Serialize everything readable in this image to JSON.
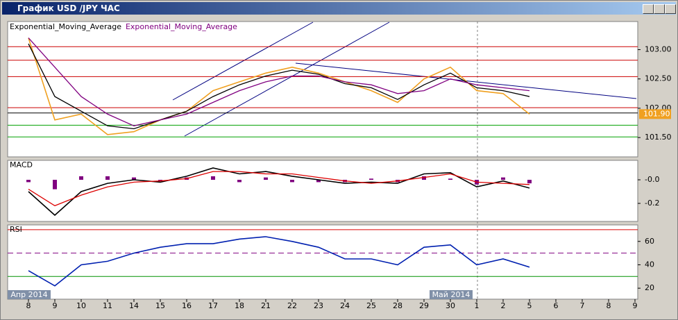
{
  "window": {
    "title": "График USD /JPY ЧАС"
  },
  "chart_data": [
    {
      "type": "line",
      "legend_colors": [
        "#000000",
        "#800080"
      ],
      "ylim": [
        101.17,
        103.48
      ],
      "yticks": [
        {
          "value": 103,
          "label": "103.00"
        },
        {
          "value": 102.5,
          "label": "102.50"
        },
        {
          "value": 102,
          "label": "102.00"
        },
        {
          "value": 101.5,
          "label": "101.50"
        }
      ],
      "hlines": [
        {
          "value": 103.05,
          "color": "#cc0000"
        },
        {
          "value": 102.82,
          "color": "#cc0000"
        },
        {
          "value": 102.54,
          "color": "#cc0000"
        },
        {
          "value": 102.01,
          "color": "#cc0000"
        },
        {
          "value": 101.92,
          "color": "#000000"
        },
        {
          "value": 101.71,
          "color": "#00a000"
        },
        {
          "value": 101.51,
          "color": "#00a000"
        }
      ],
      "last_value": {
        "value": 101.9,
        "label": "101.90"
      },
      "series": [
        {
          "color": "#f0a020",
          "values": [
            103.2,
            101.8,
            101.9,
            101.55,
            101.6,
            101.8,
            101.95,
            102.3,
            102.45,
            102.6,
            102.7,
            102.6,
            102.45,
            102.3,
            102.1,
            102.5,
            102.7,
            102.3,
            102.25,
            101.9,
            null,
            null,
            null,
            null
          ]
        },
        {
          "name": "Exponential_Moving_Average",
          "color": "#000000",
          "values": [
            103.1,
            102.2,
            101.95,
            101.7,
            101.65,
            101.8,
            101.95,
            102.2,
            102.4,
            102.55,
            102.65,
            102.58,
            102.42,
            102.35,
            102.15,
            102.4,
            102.6,
            102.35,
            102.3,
            102.2,
            null,
            null,
            null,
            null
          ]
        },
        {
          "name": "Exponential_Moving_Average",
          "color": "#800080",
          "values": [
            103.2,
            102.7,
            102.2,
            101.9,
            101.7,
            101.8,
            101.9,
            102.1,
            102.3,
            102.45,
            102.55,
            102.55,
            102.45,
            102.4,
            102.25,
            102.3,
            102.5,
            102.4,
            102.35,
            102.3,
            null,
            null,
            null,
            null
          ]
        }
      ]
    },
    {
      "type": "line",
      "title": "MACD",
      "ylim": [
        -0.353,
        0.165
      ],
      "yticks": [
        {
          "value": 0,
          "label": "-0.0"
        },
        {
          "value": -0.2,
          "label": "-0.2"
        }
      ],
      "histogram": {
        "color": "#800080",
        "values": [
          -0.02,
          -0.08,
          0.03,
          0.03,
          0.02,
          -0.01,
          0.02,
          0.03,
          -0.02,
          0.02,
          -0.02,
          -0.02,
          -0.02,
          0.01,
          -0.02,
          0.03,
          0.01,
          -0.04,
          0.02,
          -0.03,
          null,
          null,
          null,
          null
        ]
      },
      "series": [
        {
          "color": "#000000",
          "values": [
            -0.1,
            -0.3,
            -0.1,
            -0.03,
            0.0,
            -0.02,
            0.03,
            0.1,
            0.05,
            0.07,
            0.03,
            0.0,
            -0.03,
            -0.02,
            -0.03,
            0.05,
            0.06,
            -0.06,
            -0.01,
            -0.07,
            null,
            null,
            null,
            null
          ]
        },
        {
          "color": "#dd0000",
          "values": [
            -0.08,
            -0.22,
            -0.13,
            -0.06,
            -0.02,
            -0.01,
            0.01,
            0.07,
            0.07,
            0.05,
            0.05,
            0.02,
            -0.01,
            -0.03,
            -0.01,
            0.02,
            0.05,
            -0.02,
            -0.03,
            -0.04,
            null,
            null,
            null,
            null
          ]
        }
      ]
    },
    {
      "type": "line",
      "title": "RSI",
      "ylim": [
        10.6,
        74.1
      ],
      "yticks": [
        60,
        40,
        20
      ],
      "hlines": [
        {
          "value": 70,
          "color": "#dd0000"
        },
        {
          "value": 50,
          "color": "#800080",
          "dashed": true
        },
        {
          "value": 30,
          "color": "#009000"
        }
      ],
      "categories": [
        "8",
        "9",
        "10",
        "11",
        "14",
        "15",
        "16",
        "17",
        "18",
        "21",
        "22",
        "23",
        "24",
        "25",
        "28",
        "29",
        "30",
        "1",
        "2",
        "5",
        "6",
        "7",
        "8",
        "9"
      ],
      "annotations": [
        "Апр 2014",
        "Май 2014"
      ],
      "series": [
        {
          "color": "#0020b0",
          "values": [
            35,
            22,
            40,
            43,
            50,
            55,
            58,
            58,
            62,
            64,
            60,
            55,
            45,
            45,
            40,
            55,
            57,
            40,
            45,
            38,
            null,
            null,
            null,
            null
          ]
        }
      ]
    }
  ]
}
